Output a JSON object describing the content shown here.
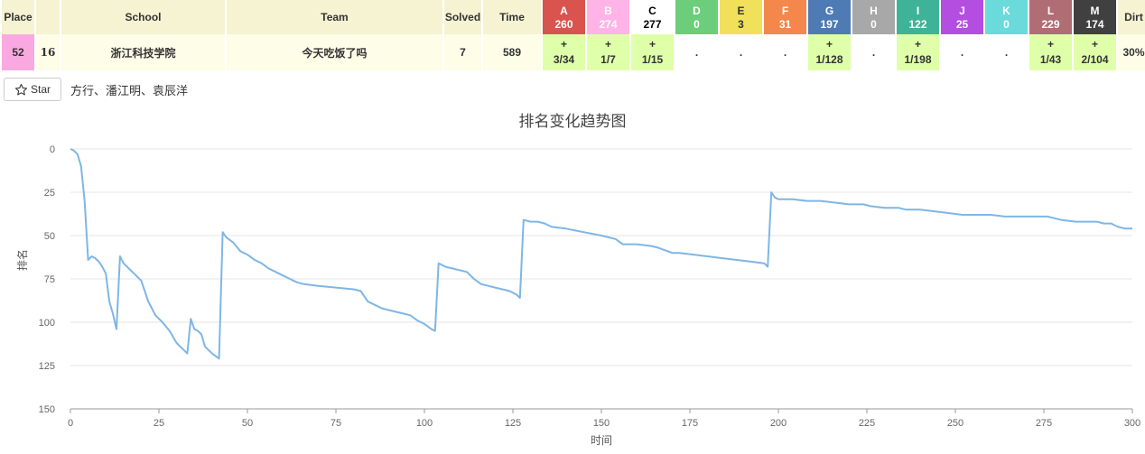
{
  "header": {
    "place": "Place",
    "rank": "",
    "school": "School",
    "team": "Team",
    "solved": "Solved",
    "time": "Time",
    "dirt": "Dirt"
  },
  "problems": [
    {
      "letter": "A",
      "count": "260",
      "color": "#d9534f",
      "text_color": "#ffffff"
    },
    {
      "letter": "B",
      "count": "274",
      "color": "#ffb3e6",
      "text_color": "#ffffff"
    },
    {
      "letter": "C",
      "count": "277",
      "color": "#ffffff",
      "text_color": "#000000"
    },
    {
      "letter": "D",
      "count": "0",
      "color": "#6ccd7a",
      "text_color": "#ffffff"
    },
    {
      "letter": "E",
      "count": "3",
      "color": "#f1e05a",
      "text_color": "#333333"
    },
    {
      "letter": "F",
      "count": "31",
      "color": "#f4874b",
      "text_color": "#ffffff"
    },
    {
      "letter": "G",
      "count": "197",
      "color": "#4e7bb4",
      "text_color": "#ffffff"
    },
    {
      "letter": "H",
      "count": "0",
      "color": "#a8a8a8",
      "text_color": "#ffffff"
    },
    {
      "letter": "I",
      "count": "122",
      "color": "#3fb397",
      "text_color": "#ffffff"
    },
    {
      "letter": "J",
      "count": "25",
      "color": "#b44ee0",
      "text_color": "#ffffff"
    },
    {
      "letter": "K",
      "count": "0",
      "color": "#6adadb",
      "text_color": "#ffffff"
    },
    {
      "letter": "L",
      "count": "229",
      "color": "#b06d74",
      "text_color": "#ffffff"
    },
    {
      "letter": "M",
      "count": "174",
      "color": "#404040",
      "text_color": "#ffffff"
    }
  ],
  "row": {
    "place": "52",
    "rank": "16",
    "school": "浙江科技学院",
    "team": "今天吃饭了吗",
    "solved": "7",
    "time": "589",
    "dirt": "30%",
    "results": [
      {
        "solved": true,
        "mark": "+",
        "detail": "3/34"
      },
      {
        "solved": true,
        "mark": "+",
        "detail": "1/7"
      },
      {
        "solved": true,
        "mark": "+",
        "detail": "1/15"
      },
      {
        "solved": false,
        "mark": ".",
        "detail": ""
      },
      {
        "solved": false,
        "mark": ".",
        "detail": ""
      },
      {
        "solved": false,
        "mark": ".",
        "detail": ""
      },
      {
        "solved": true,
        "mark": "+",
        "detail": "1/128"
      },
      {
        "solved": false,
        "mark": ".",
        "detail": ""
      },
      {
        "solved": true,
        "mark": "+",
        "detail": "1/198"
      },
      {
        "solved": false,
        "mark": ".",
        "detail": ""
      },
      {
        "solved": false,
        "mark": ".",
        "detail": ""
      },
      {
        "solved": true,
        "mark": "+",
        "detail": "1/43"
      },
      {
        "solved": true,
        "mark": "+",
        "detail": "2/104"
      }
    ]
  },
  "star_button": {
    "label": "Star",
    "icon": "star-outline-icon"
  },
  "members": "方行、潘江明、袁辰洋",
  "chart_data": {
    "type": "line",
    "title": "排名变化趋势图",
    "xlabel": "时间",
    "ylabel": "排名",
    "xlim": [
      0,
      300
    ],
    "ylim": [
      0,
      150
    ],
    "y_inverted": true,
    "grid": true,
    "x_ticks": [
      0,
      25,
      50,
      75,
      100,
      125,
      150,
      175,
      200,
      225,
      250,
      275,
      300
    ],
    "y_ticks": [
      0,
      25,
      50,
      75,
      100,
      125,
      150
    ],
    "line_color": "#7eb6e6",
    "series": [
      {
        "x": [
          0,
          1,
          2,
          3,
          4,
          5,
          6,
          7,
          8,
          9,
          10,
          11,
          12,
          13,
          14,
          15,
          16,
          17,
          18,
          20,
          22,
          24,
          26,
          28,
          30,
          31,
          32,
          33,
          34,
          35,
          36,
          37,
          38,
          40,
          42,
          43,
          44,
          46,
          48,
          50,
          52,
          54,
          56,
          58,
          60,
          62,
          64,
          66,
          70,
          75,
          80,
          82,
          84,
          86,
          88,
          90,
          92,
          94,
          96,
          98,
          100,
          102,
          103,
          104,
          106,
          108,
          110,
          112,
          114,
          116,
          118,
          120,
          122,
          124,
          126,
          127,
          128,
          130,
          132,
          134,
          136,
          140,
          145,
          150,
          152,
          154,
          156,
          160,
          164,
          166,
          170,
          172,
          176,
          180,
          184,
          188,
          192,
          196,
          197,
          198,
          199,
          200,
          204,
          208,
          212,
          216,
          220,
          224,
          226,
          230,
          234,
          236,
          240,
          244,
          248,
          252,
          256,
          260,
          264,
          268,
          272,
          276,
          278,
          280,
          284,
          288,
          290,
          292,
          294,
          296,
          298,
          300
        ],
        "y": [
          0,
          1,
          3,
          10,
          30,
          64,
          62,
          63,
          65,
          68,
          72,
          88,
          95,
          104,
          62,
          66,
          68,
          70,
          72,
          76,
          88,
          96,
          100,
          105,
          112,
          114,
          116,
          118,
          98,
          104,
          105,
          107,
          114,
          118,
          121,
          48,
          51,
          54,
          59,
          61,
          64,
          66,
          69,
          71,
          73,
          75,
          77,
          78,
          79,
          80,
          81,
          82,
          88,
          90,
          92,
          93,
          94,
          95,
          96,
          99,
          101,
          104,
          105,
          66,
          68,
          69,
          70,
          71,
          75,
          78,
          79,
          80,
          81,
          82,
          84,
          86,
          41,
          42,
          42,
          43,
          45,
          46,
          48,
          50,
          51,
          52,
          55,
          55,
          56,
          57,
          60,
          60,
          61,
          62,
          63,
          64,
          65,
          66,
          68,
          25,
          28,
          29,
          29,
          30,
          30,
          31,
          32,
          32,
          33,
          34,
          34,
          35,
          35,
          36,
          37,
          38,
          38,
          38,
          39,
          39,
          39,
          39,
          40,
          41,
          42,
          42,
          42,
          43,
          43,
          45,
          46,
          46
        ]
      }
    ]
  }
}
